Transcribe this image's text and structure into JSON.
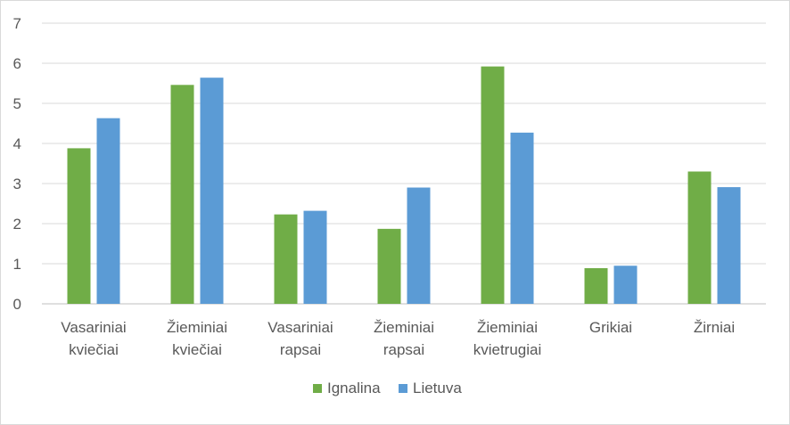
{
  "chart_data": {
    "type": "bar",
    "title": "",
    "xlabel": "",
    "ylabel": "",
    "ylim": [
      0,
      7
    ],
    "yticks": [
      0,
      1,
      2,
      3,
      4,
      5,
      6,
      7
    ],
    "grid": true,
    "legend_position": "bottom",
    "categories": [
      [
        "Vasariniai",
        "kviečiai"
      ],
      [
        "Žieminiai",
        "kviečiai"
      ],
      [
        "Vasariniai",
        "rapsai"
      ],
      [
        "Žieminiai",
        "rapsai"
      ],
      [
        "Žieminiai",
        "kvietrugiai"
      ],
      [
        "Grikiai"
      ],
      [
        "Žirniai"
      ]
    ],
    "series": [
      {
        "name": "Ignalina",
        "color": "#70ad47",
        "values": [
          3.88,
          5.46,
          2.23,
          1.87,
          5.92,
          0.89,
          3.3
        ]
      },
      {
        "name": "Lietuva",
        "color": "#5b9bd5",
        "values": [
          4.63,
          5.64,
          2.32,
          2.9,
          4.27,
          0.95,
          2.91
        ]
      }
    ]
  }
}
